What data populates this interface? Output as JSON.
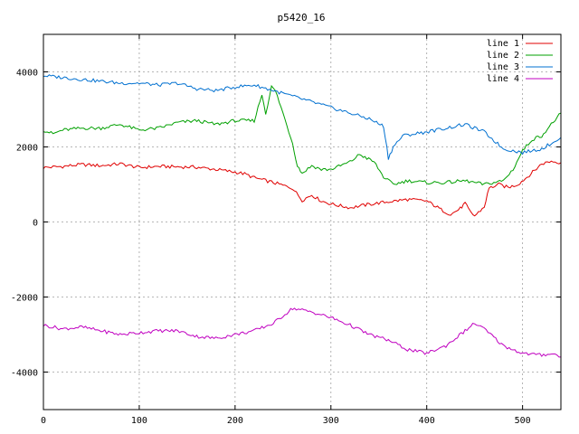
{
  "chart_data": {
    "type": "line",
    "title": "p5420_16",
    "xlabel": "",
    "ylabel": "",
    "xlim": [
      0,
      540
    ],
    "ylim": [
      -5000,
      5000
    ],
    "x_ticks": [
      0,
      100,
      200,
      300,
      400,
      500
    ],
    "y_ticks": [
      -4000,
      -2000,
      0,
      2000,
      4000
    ],
    "grid": true,
    "legend_position": "top-right",
    "series": [
      {
        "name": "line 1",
        "color": "#e00000",
        "points": [
          [
            0,
            1450
          ],
          [
            20,
            1480
          ],
          [
            40,
            1530
          ],
          [
            60,
            1500
          ],
          [
            80,
            1550
          ],
          [
            100,
            1450
          ],
          [
            120,
            1480
          ],
          [
            140,
            1470
          ],
          [
            160,
            1460
          ],
          [
            180,
            1400
          ],
          [
            200,
            1330
          ],
          [
            210,
            1280
          ],
          [
            220,
            1180
          ],
          [
            240,
            1050
          ],
          [
            260,
            900
          ],
          [
            270,
            580
          ],
          [
            280,
            720
          ],
          [
            290,
            560
          ],
          [
            300,
            480
          ],
          [
            320,
            380
          ],
          [
            340,
            470
          ],
          [
            360,
            540
          ],
          [
            380,
            600
          ],
          [
            400,
            560
          ],
          [
            415,
            330
          ],
          [
            425,
            200
          ],
          [
            435,
            360
          ],
          [
            440,
            500
          ],
          [
            445,
            280
          ],
          [
            450,
            160
          ],
          [
            460,
            400
          ],
          [
            465,
            900
          ],
          [
            475,
            1000
          ],
          [
            485,
            920
          ],
          [
            495,
            1000
          ],
          [
            505,
            1200
          ],
          [
            520,
            1550
          ],
          [
            530,
            1620
          ],
          [
            540,
            1580
          ]
        ]
      },
      {
        "name": "line 2",
        "color": "#00a000",
        "points": [
          [
            0,
            2450
          ],
          [
            10,
            2350
          ],
          [
            20,
            2450
          ],
          [
            40,
            2500
          ],
          [
            60,
            2500
          ],
          [
            80,
            2600
          ],
          [
            100,
            2450
          ],
          [
            120,
            2500
          ],
          [
            140,
            2650
          ],
          [
            160,
            2700
          ],
          [
            180,
            2600
          ],
          [
            200,
            2700
          ],
          [
            220,
            2700
          ],
          [
            228,
            3400
          ],
          [
            232,
            2900
          ],
          [
            238,
            3600
          ],
          [
            242,
            3500
          ],
          [
            250,
            2900
          ],
          [
            260,
            2100
          ],
          [
            265,
            1500
          ],
          [
            270,
            1300
          ],
          [
            280,
            1500
          ],
          [
            290,
            1400
          ],
          [
            300,
            1400
          ],
          [
            320,
            1600
          ],
          [
            330,
            1800
          ],
          [
            345,
            1600
          ],
          [
            355,
            1200
          ],
          [
            365,
            1000
          ],
          [
            380,
            1100
          ],
          [
            400,
            1050
          ],
          [
            420,
            1050
          ],
          [
            440,
            1100
          ],
          [
            460,
            1000
          ],
          [
            480,
            1100
          ],
          [
            490,
            1400
          ],
          [
            500,
            1900
          ],
          [
            510,
            2200
          ],
          [
            520,
            2300
          ],
          [
            530,
            2600
          ],
          [
            540,
            2900
          ]
        ]
      },
      {
        "name": "line 3",
        "color": "#0070d0",
        "points": [
          [
            0,
            3900
          ],
          [
            20,
            3850
          ],
          [
            40,
            3800
          ],
          [
            60,
            3750
          ],
          [
            80,
            3700
          ],
          [
            100,
            3700
          ],
          [
            120,
            3650
          ],
          [
            140,
            3700
          ],
          [
            160,
            3550
          ],
          [
            180,
            3500
          ],
          [
            200,
            3600
          ],
          [
            220,
            3650
          ],
          [
            240,
            3500
          ],
          [
            260,
            3350
          ],
          [
            280,
            3200
          ],
          [
            300,
            3050
          ],
          [
            320,
            2900
          ],
          [
            340,
            2750
          ],
          [
            355,
            2550
          ],
          [
            360,
            1700
          ],
          [
            365,
            2000
          ],
          [
            375,
            2300
          ],
          [
            400,
            2400
          ],
          [
            420,
            2500
          ],
          [
            440,
            2600
          ],
          [
            460,
            2400
          ],
          [
            480,
            1950
          ],
          [
            500,
            1850
          ],
          [
            520,
            1950
          ],
          [
            530,
            2100
          ],
          [
            540,
            2250
          ]
        ]
      },
      {
        "name": "line 4",
        "color": "#c000c0",
        "points": [
          [
            0,
            -2750
          ],
          [
            20,
            -2850
          ],
          [
            40,
            -2800
          ],
          [
            60,
            -2900
          ],
          [
            80,
            -3000
          ],
          [
            100,
            -2950
          ],
          [
            120,
            -2900
          ],
          [
            140,
            -2900
          ],
          [
            160,
            -3050
          ],
          [
            180,
            -3100
          ],
          [
            200,
            -3000
          ],
          [
            220,
            -2900
          ],
          [
            240,
            -2700
          ],
          [
            260,
            -2300
          ],
          [
            270,
            -2350
          ],
          [
            280,
            -2400
          ],
          [
            300,
            -2550
          ],
          [
            320,
            -2750
          ],
          [
            340,
            -3000
          ],
          [
            360,
            -3150
          ],
          [
            380,
            -3400
          ],
          [
            400,
            -3500
          ],
          [
            420,
            -3300
          ],
          [
            440,
            -2900
          ],
          [
            450,
            -2700
          ],
          [
            460,
            -2850
          ],
          [
            480,
            -3300
          ],
          [
            500,
            -3500
          ],
          [
            520,
            -3550
          ],
          [
            530,
            -3500
          ],
          [
            540,
            -3600
          ]
        ]
      }
    ]
  }
}
